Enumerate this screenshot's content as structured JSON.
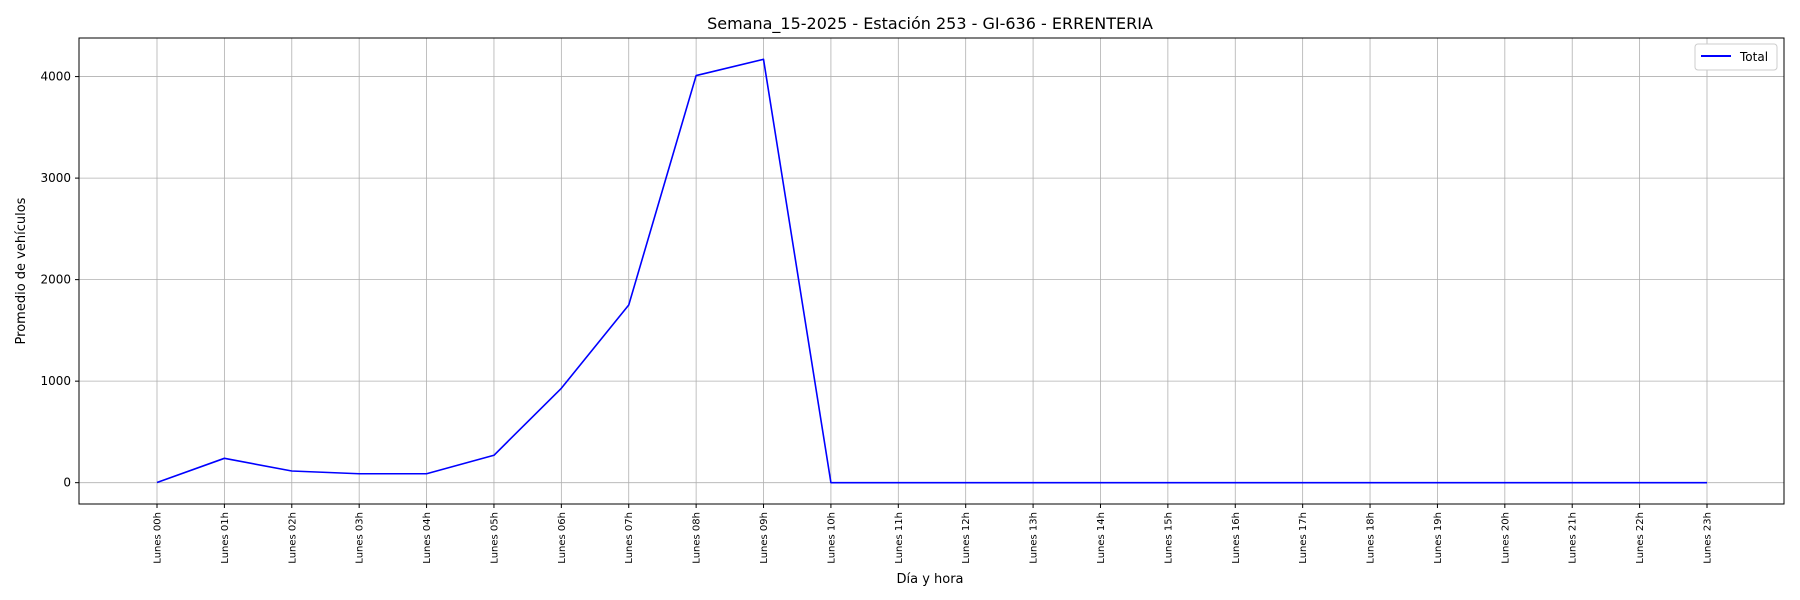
{
  "chart_data": {
    "type": "line",
    "title": "Semana_15-2025 - Estación 253 - GI-636  - ERRENTERIA",
    "xlabel": "Día y hora",
    "ylabel": "Promedio de vehículos",
    "categories": [
      "Lunes 00h",
      "Lunes 01h",
      "Lunes 02h",
      "Lunes 03h",
      "Lunes 04h",
      "Lunes 05h",
      "Lunes 06h",
      "Lunes 07h",
      "Lunes 08h",
      "Lunes 09h",
      "Lunes 10h",
      "Lunes 11h",
      "Lunes 12h",
      "Lunes 13h",
      "Lunes 14h",
      "Lunes 15h",
      "Lunes 16h",
      "Lunes 17h",
      "Lunes 18h",
      "Lunes 19h",
      "Lunes 20h",
      "Lunes 21h",
      "Lunes 22h",
      "Lunes 23h"
    ],
    "series": [
      {
        "name": "Total",
        "color": "#0000ff",
        "values": [
          2,
          240,
          115,
          88,
          88,
          270,
          930,
          1750,
          4010,
          4170,
          0,
          0,
          0,
          0,
          0,
          0,
          0,
          0,
          0,
          0,
          0,
          0,
          0,
          0
        ]
      }
    ],
    "yticks": [
      0,
      1000,
      2000,
      3000,
      4000
    ],
    "ylim": [
      -210,
      4380
    ],
    "grid": true,
    "legend_position": "top-right"
  }
}
